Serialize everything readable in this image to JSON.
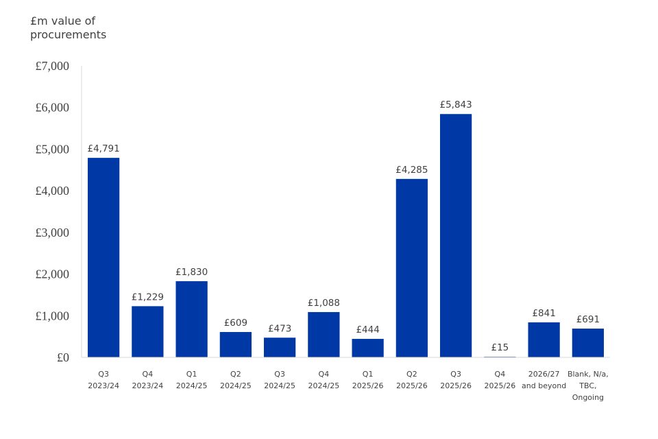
{
  "chart_data": {
    "type": "bar",
    "ylabel": [
      "£m value of",
      "procurements"
    ],
    "title": "",
    "xlabel": "",
    "ylim": [
      0,
      7000
    ],
    "y_ticks": [
      {
        "value": 0,
        "label": "£0"
      },
      {
        "value": 1000,
        "label": "£1,000"
      },
      {
        "value": 2000,
        "label": "£2,000"
      },
      {
        "value": 3000,
        "label": "£3,000"
      },
      {
        "value": 4000,
        "label": "£4,000"
      },
      {
        "value": 5000,
        "label": "£5,000"
      },
      {
        "value": 6000,
        "label": "£6,000"
      },
      {
        "value": 7000,
        "label": "£7,000"
      }
    ],
    "categories": [
      [
        "Q3",
        "2023/24"
      ],
      [
        "Q4",
        "2023/24"
      ],
      [
        "Q1",
        "2024/25"
      ],
      [
        "Q2",
        "2024/25"
      ],
      [
        "Q3",
        "2024/25"
      ],
      [
        "Q4",
        "2024/25"
      ],
      [
        "Q1",
        "2025/26"
      ],
      [
        "Q2",
        "2025/26"
      ],
      [
        "Q3",
        "2025/26"
      ],
      [
        "Q4",
        "2025/26"
      ],
      [
        "2026/27",
        "and beyond"
      ],
      [
        "Blank, N/a,",
        "TBC,",
        "Ongoing"
      ]
    ],
    "values": [
      4791,
      1229,
      1830,
      609,
      473,
      1088,
      444,
      4285,
      5843,
      15,
      841,
      691
    ],
    "data_labels": [
      "£4,791",
      "£1,229",
      "£1,830",
      "£609",
      "£473",
      "£1,088",
      "£444",
      "£4,285",
      "£5,843",
      "£15",
      "£841",
      "£691"
    ],
    "bar_color": "#0039A6",
    "grid": false,
    "legend": "none"
  }
}
